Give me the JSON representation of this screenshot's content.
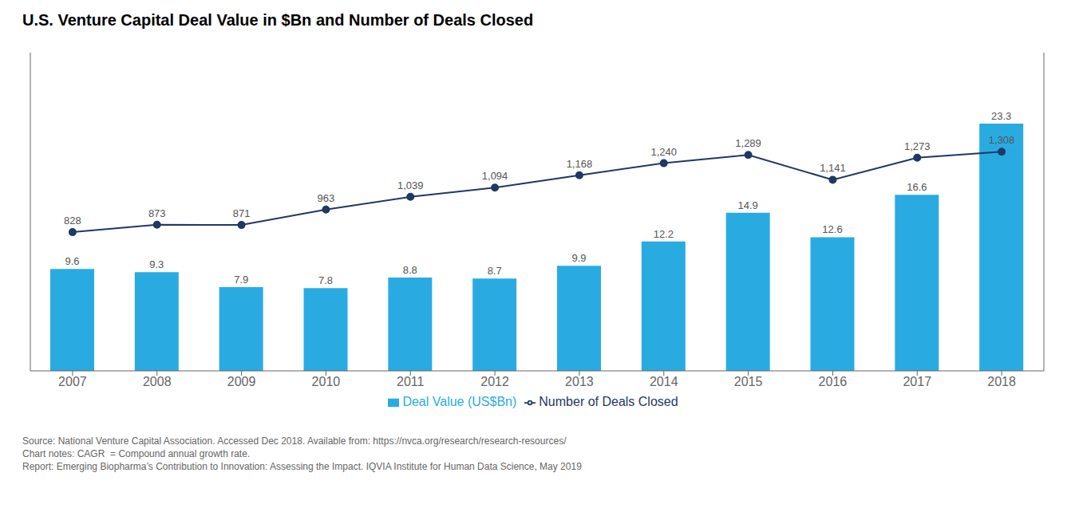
{
  "chart_data": {
    "type": "bar",
    "title": "U.S. Venture Capital Deal Value in $Bn and Number of Deals Closed",
    "categories": [
      "2007",
      "2008",
      "2009",
      "2010",
      "2011",
      "2012",
      "2013",
      "2014",
      "2015",
      "2016",
      "2017",
      "2018"
    ],
    "series": [
      {
        "name": "Deal Value (US$Bn)",
        "type": "bar",
        "color": "#29ABE2",
        "values": [
          9.6,
          9.3,
          7.9,
          7.8,
          8.8,
          8.7,
          9.9,
          12.2,
          14.9,
          12.6,
          16.6,
          23.3
        ]
      },
      {
        "name": "Number of Deals Closed",
        "type": "line",
        "axis": "y2",
        "color": "#1F3864",
        "marker": "circle",
        "values": [
          828,
          873,
          871,
          963,
          1039,
          1094,
          1168,
          1240,
          1289,
          1141,
          1273,
          1308
        ],
        "value_labels": [
          "828",
          "873",
          "871",
          "963",
          "1,039",
          "1,094",
          "1,168",
          "1,240",
          "1,289",
          "1,141",
          "1,273",
          "1,308"
        ]
      }
    ],
    "ylim": [
      0,
      30
    ],
    "y2lim": [
      0,
      1900
    ],
    "data_labels": true,
    "tick_labels": "x",
    "grid": false,
    "legend": "bottom",
    "annotations": [
      "Source: National Venture Capital Association. Accessed Dec 2018. Available from: https://nvca.org/research/research-resources/",
      "Chart notes: CAGR  = Compound annual growth rate.",
      "Report: Emerging Biopharma’s Contribution to Innovation: Assessing the Impact. IQVIA Institute for Human Data Science, May 2019"
    ]
  }
}
